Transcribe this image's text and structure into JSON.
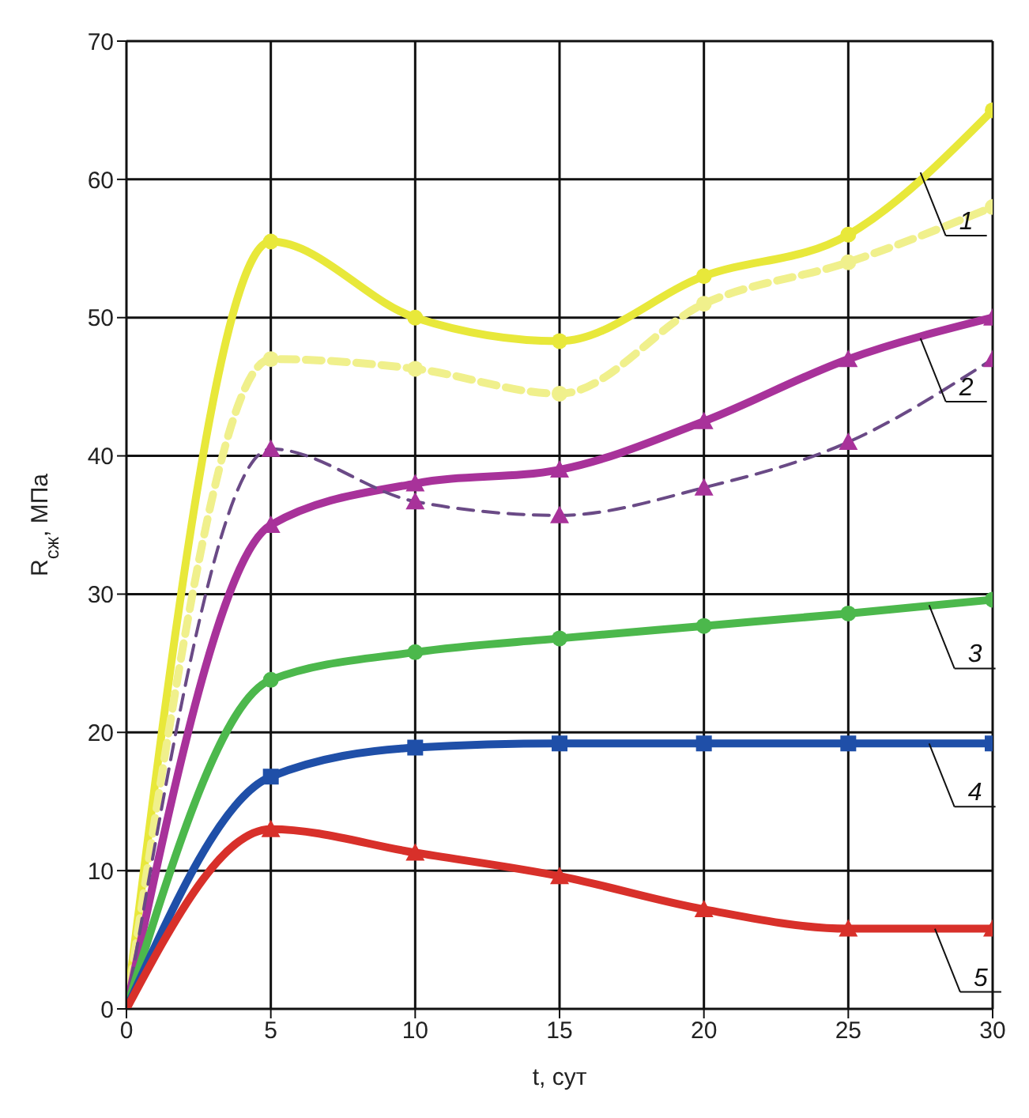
{
  "chart_data": {
    "type": "line",
    "xlabel": "t, сут",
    "ylabel": "R$_{сж}$, МПа",
    "x": [
      0,
      5,
      10,
      15,
      20,
      25,
      30
    ],
    "series": [
      {
        "color": "#e8e83a",
        "marker": "circle",
        "line_style": "solid",
        "values": [
          0,
          55.5,
          50,
          48.3,
          53,
          56,
          65
        ]
      },
      {
        "color": "#f0f08c",
        "marker": "circle",
        "line_style": "dashed",
        "values": [
          0,
          47,
          46.3,
          44.5,
          51,
          54,
          58
        ]
      },
      {
        "color": "#a8329a",
        "marker": "triangle",
        "line_style": "solid",
        "values": [
          0,
          35,
          38,
          39,
          42.5,
          47,
          50
        ]
      },
      {
        "color": "#6a4a86",
        "marker": "triangle",
        "line_style": "dashed",
        "values": [
          0,
          40.5,
          36.7,
          35.7,
          37.7,
          41,
          47
        ]
      },
      {
        "color": "#4cb84c",
        "marker": "circle",
        "line_style": "solid",
        "values": [
          0,
          23.8,
          25.8,
          26.8,
          27.7,
          28.6,
          29.6
        ]
      },
      {
        "color": "#1f4fa8",
        "marker": "square",
        "line_style": "solid",
        "values": [
          0,
          16.8,
          18.9,
          19.2,
          19.2,
          19.2,
          19.2
        ]
      },
      {
        "color": "#d8302a",
        "marker": "triangle",
        "line_style": "solid",
        "values": [
          0,
          13,
          11.3,
          9.6,
          7.2,
          5.8,
          5.8
        ]
      }
    ],
    "xlim": [
      0,
      30
    ],
    "xticks": [
      0,
      5,
      10,
      15,
      20,
      25,
      30
    ],
    "ylim": [
      0,
      70
    ],
    "yticks": [
      0,
      10,
      20,
      30,
      40,
      50,
      60,
      70
    ],
    "grid": true,
    "legend": false,
    "annotations": [
      {
        "text": "1",
        "x": 27.5,
        "y": 60.5
      },
      {
        "text": "2",
        "x": 27.5,
        "y": 48.5
      },
      {
        "text": "3",
        "x": 27.8,
        "y": 29.2
      },
      {
        "text": "4",
        "x": 27.8,
        "y": 19.2
      },
      {
        "text": "5",
        "x": 28,
        "y": 5.8
      }
    ]
  }
}
